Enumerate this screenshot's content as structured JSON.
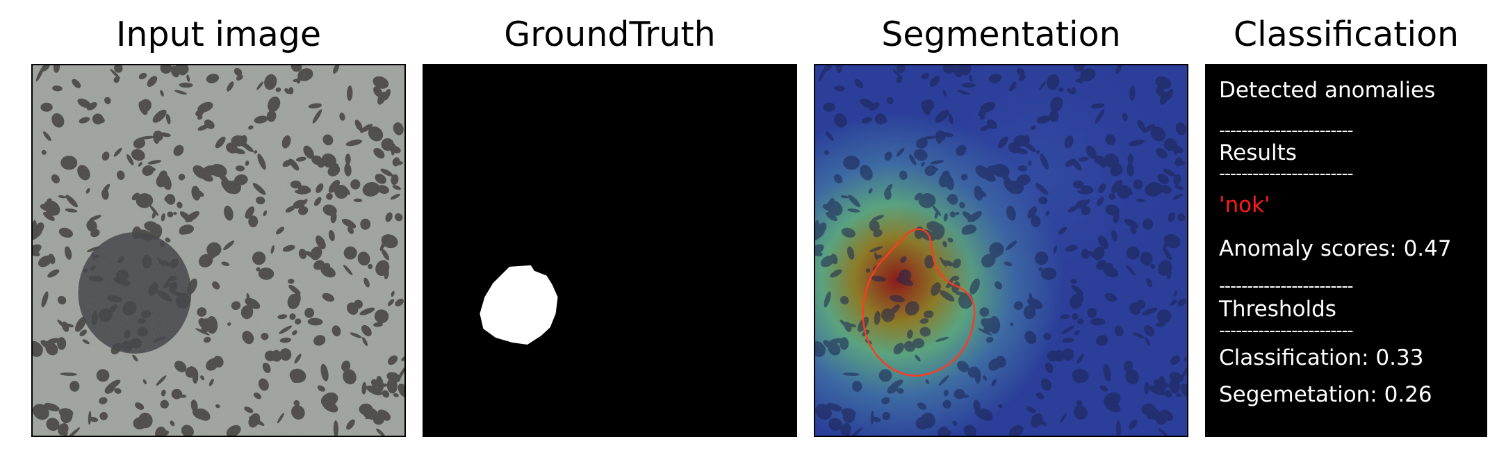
{
  "panels": {
    "input": {
      "title": "Input image"
    },
    "ground_truth": {
      "title": "GroundTruth"
    },
    "segmentation": {
      "title": "Segmentation"
    },
    "classification": {
      "title": "Classification",
      "detected_anomalies": "Detected anomalies",
      "divider": "------------------------",
      "results_label": "Results",
      "verdict": "'nok'",
      "anomaly_scores": "Anomaly scores: 0.47",
      "thresholds_label": "Thresholds",
      "classification_threshold": "Classification: 0.33",
      "segmentation_threshold": "Segemetation: 0.26"
    }
  },
  "colors": {
    "background": "#000000",
    "text": "#ffffff",
    "verdict": "#ff1a1a",
    "contour": "#ff3b1f",
    "texture_base": "#9ea39d",
    "texture_spot": "#4a4844"
  }
}
